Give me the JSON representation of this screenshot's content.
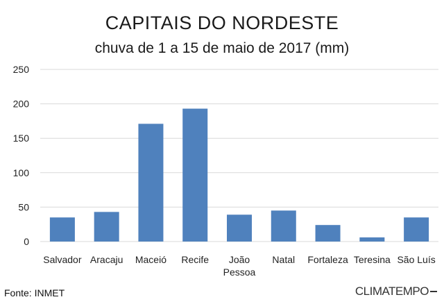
{
  "chart_data": {
    "type": "bar",
    "title": "CAPITAIS DO NORDESTE",
    "subtitle": "chuva de 1 a 15 de maio de 2017 (mm)",
    "categories": [
      "Salvador",
      "Aracaju",
      "Maceió",
      "Recife",
      "João Pessoa",
      "Natal",
      "Fortaleza",
      "Teresina",
      "São Luís"
    ],
    "values": [
      35,
      43,
      171,
      193,
      39,
      45,
      24,
      6,
      35
    ],
    "ylim": [
      0,
      250
    ],
    "yticks": [
      0,
      50,
      100,
      150,
      200,
      250
    ],
    "grid": true,
    "bar_color": "#4f81bd",
    "grid_color": "#d9d9d9"
  },
  "footer": {
    "source": "Fonte: INMET",
    "logo_text": "CLIMATEMPO"
  }
}
